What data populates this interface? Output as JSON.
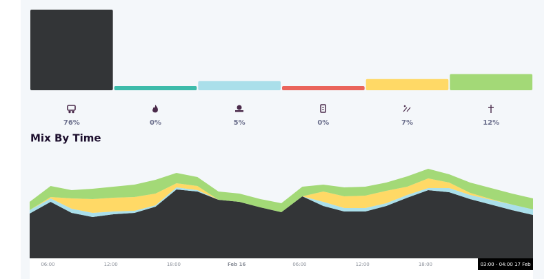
{
  "mix_summary": {
    "type": "bar",
    "values": [
      76,
      0,
      5,
      0,
      7,
      12
    ],
    "value_labels": [
      "76%",
      "0%",
      "5%",
      "0%",
      "7%",
      "12%"
    ],
    "colors": [
      "#333537",
      "#3dbbaa",
      "#aadfea",
      "#ea645b",
      "#ffd966",
      "#a3d977"
    ],
    "ylim": [
      0,
      76
    ]
  },
  "chart_data": {
    "type": "stacked-area",
    "title": "Mix By Time",
    "categories": [
      null,
      "06:00",
      null,
      null,
      "12:00",
      null,
      null,
      "18:00",
      null,
      null,
      "Feb 16",
      null,
      null,
      "06:00",
      null,
      null,
      "12:00",
      null,
      null,
      "18:00",
      null,
      null,
      null,
      null,
      null
    ],
    "series": [
      {
        "color": "#333537",
        "values": [
          65,
          82,
          66,
          60,
          64,
          66,
          75,
          100,
          97,
          85,
          82,
          74,
          67,
          90,
          76,
          68,
          68,
          76,
          88,
          99,
          96,
          86,
          78,
          70,
          63
        ]
      },
      {
        "color": "#aadfea",
        "values": [
          5,
          5,
          6,
          6,
          4,
          3,
          2,
          3,
          2,
          0,
          0,
          0,
          0,
          0,
          6,
          5,
          5,
          4,
          4,
          3,
          6,
          6,
          7,
          8,
          8
        ]
      },
      {
        "color": "#ffd966",
        "values": [
          0,
          2,
          15,
          20,
          20,
          20,
          17,
          6,
          6,
          0,
          0,
          0,
          0,
          0,
          15,
          17,
          18,
          18,
          12,
          14,
          8,
          3,
          1,
          0,
          0
        ]
      },
      {
        "color": "#a3d977",
        "values": [
          12,
          16,
          12,
          15,
          16,
          18,
          20,
          15,
          13,
          12,
          12,
          12,
          13,
          14,
          10,
          13,
          13,
          12,
          15,
          14,
          12,
          15,
          16,
          16,
          16
        ]
      }
    ],
    "ylim": [
      0,
      140
    ],
    "tooltip": "03:00 - 04:00 17 Feb"
  }
}
